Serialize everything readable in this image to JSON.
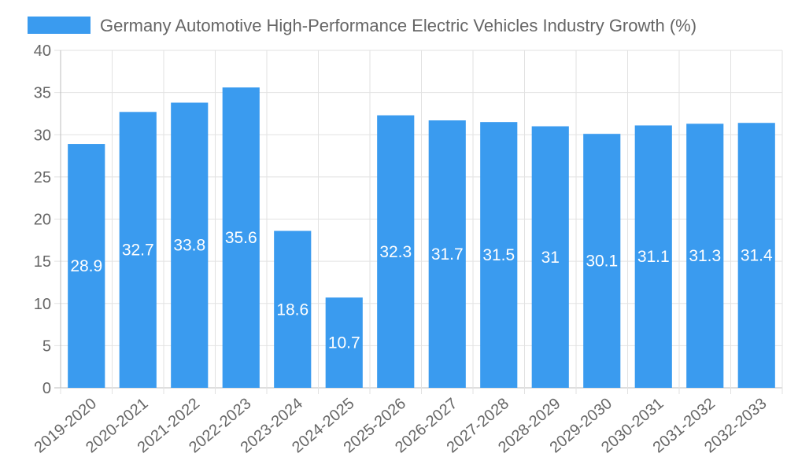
{
  "chart_data": {
    "type": "bar",
    "title": "Germany Automotive High-Performance Electric Vehicles Industry Growth (%)",
    "series": [
      {
        "name": "Germany Automotive High-Performance Electric Vehicles Industry Growth (%)",
        "color": "#3a9bef",
        "values": [
          28.9,
          32.7,
          33.8,
          35.6,
          18.6,
          10.7,
          32.3,
          31.7,
          31.5,
          31,
          30.1,
          31.1,
          31.3,
          31.4
        ]
      }
    ],
    "categories": [
      "2019-2020",
      "2020-2021",
      "2021-2022",
      "2022-2023",
      "2023-2024",
      "2024-2025",
      "2025-2026",
      "2026-2027",
      "2027-2028",
      "2028-2029",
      "2029-2030",
      "2030-2031",
      "2031-2032",
      "2032-2033"
    ],
    "data_labels": [
      "28.9",
      "32.7",
      "33.8",
      "35.6",
      "18.6",
      "10.7",
      "32.3",
      "31.7",
      "31.5",
      "31",
      "30.1",
      "31.1",
      "31.3",
      "31.4"
    ],
    "y_ticks": [
      "0",
      "5",
      "10",
      "15",
      "20",
      "25",
      "30",
      "35",
      "40"
    ],
    "ylim": [
      0,
      40
    ],
    "xlabel": "",
    "ylabel": "",
    "grid": true,
    "legend": "top"
  }
}
